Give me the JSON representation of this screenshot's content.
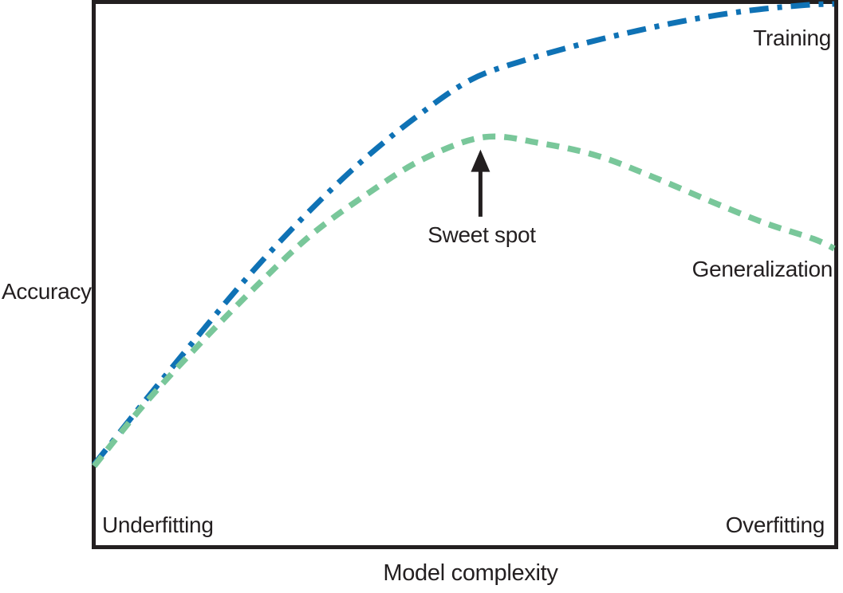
{
  "figure": {
    "xlabel": "Model complexity",
    "ylabel": "Accuracy",
    "labels": {
      "training": "Training",
      "generalization": "Generalization",
      "sweet_spot": "Sweet spot",
      "underfitting": "Underfitting",
      "overfitting": "Overfitting"
    },
    "colors": {
      "training": "#0f72b5",
      "generalization": "#79c79a",
      "ink": "#231f20"
    }
  },
  "chart_data": {
    "type": "line",
    "title": "",
    "xlabel": "Model complexity",
    "ylabel": "Accuracy",
    "x_range": [
      0,
      1
    ],
    "y_range": [
      0,
      1
    ],
    "grid": false,
    "axis_ticks": "none",
    "legend_position": "inline-labels",
    "series": [
      {
        "id": "training",
        "name": "Training",
        "color": "#0f72b5",
        "style": "dash-dot",
        "points": [
          [
            0.0,
            0.149
          ],
          [
            0.067,
            0.264
          ],
          [
            0.137,
            0.381
          ],
          [
            0.207,
            0.495
          ],
          [
            0.282,
            0.605
          ],
          [
            0.358,
            0.705
          ],
          [
            0.433,
            0.789
          ],
          [
            0.509,
            0.86
          ],
          [
            0.584,
            0.897
          ],
          [
            0.659,
            0.926
          ],
          [
            0.735,
            0.951
          ],
          [
            0.81,
            0.972
          ],
          [
            0.886,
            0.988
          ],
          [
            0.961,
            0.998
          ],
          [
            1.0,
            1.0
          ]
        ]
      },
      {
        "id": "generalization",
        "name": "Generalization",
        "color": "#79c79a",
        "style": "dashed",
        "points": [
          [
            0.0,
            0.146
          ],
          [
            0.067,
            0.259
          ],
          [
            0.142,
            0.371
          ],
          [
            0.218,
            0.477
          ],
          [
            0.293,
            0.573
          ],
          [
            0.369,
            0.649
          ],
          [
            0.444,
            0.713
          ],
          [
            0.527,
            0.754
          ],
          [
            0.606,
            0.742
          ],
          [
            0.681,
            0.719
          ],
          [
            0.756,
            0.68
          ],
          [
            0.832,
            0.636
          ],
          [
            0.907,
            0.595
          ],
          [
            0.972,
            0.566
          ],
          [
            1.0,
            0.548
          ]
        ]
      }
    ],
    "annotations": [
      {
        "id": "sweet-spot",
        "label": "Sweet spot",
        "type": "arrow",
        "arrow": {
          "tip": [
            0.522,
            0.731
          ],
          "tail": [
            0.522,
            0.607
          ]
        },
        "points_to": "peak of Generalization curve"
      },
      {
        "id": "underfitting",
        "label": "Underfitting",
        "type": "region-label",
        "position": "bottom-left"
      },
      {
        "id": "overfitting",
        "label": "Overfitting",
        "type": "region-label",
        "position": "bottom-right"
      }
    ]
  }
}
